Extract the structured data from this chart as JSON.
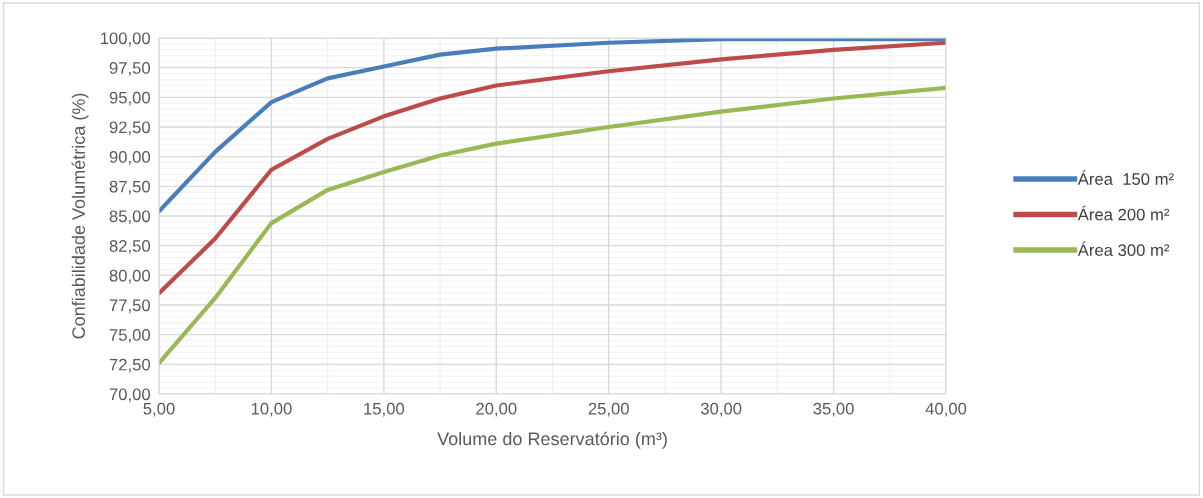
{
  "chart_data": {
    "type": "line",
    "xlabel": "Volume do Reservatório (m³)",
    "ylabel": "Confiabilidade Volumétrica (%)",
    "x": [
      5,
      7.5,
      10,
      12.5,
      15,
      17.5,
      20,
      25,
      30,
      35,
      40
    ],
    "series": [
      {
        "name": "Área  150 m²",
        "color": "#4a7ebb",
        "values": [
          85.4,
          90.4,
          94.6,
          96.6,
          97.6,
          98.6,
          99.1,
          99.6,
          99.9,
          99.9,
          99.9
        ]
      },
      {
        "name": "Área 200 m²",
        "color": "#be4b48",
        "values": [
          78.5,
          83.1,
          88.9,
          91.5,
          93.4,
          94.9,
          96.0,
          97.2,
          98.2,
          99.0,
          99.6
        ]
      },
      {
        "name": "Área 300 m²",
        "color": "#98b954",
        "values": [
          72.6,
          78.1,
          84.4,
          87.2,
          88.7,
          90.1,
          91.1,
          92.5,
          93.8,
          94.9,
          95.8
        ]
      }
    ],
    "xlim": [
      5,
      40
    ],
    "xticks": [
      {
        "value": 5,
        "label": "5,00"
      },
      {
        "value": 10,
        "label": "10,00"
      },
      {
        "value": 15,
        "label": "15,00"
      },
      {
        "value": 20,
        "label": "20,00"
      },
      {
        "value": 25,
        "label": "25,00"
      },
      {
        "value": 30,
        "label": "30,00"
      },
      {
        "value": 35,
        "label": "35,00"
      },
      {
        "value": 40,
        "label": "40,00"
      }
    ],
    "ylim": [
      70,
      100
    ],
    "yticks": [
      {
        "value": 70,
        "label": "70,00"
      },
      {
        "value": 72.5,
        "label": "72,50"
      },
      {
        "value": 75,
        "label": "75,00"
      },
      {
        "value": 77.5,
        "label": "77,50"
      },
      {
        "value": 80,
        "label": "80,00"
      },
      {
        "value": 82.5,
        "label": "82,50"
      },
      {
        "value": 85,
        "label": "85,00"
      },
      {
        "value": 87.5,
        "label": "87,50"
      },
      {
        "value": 90,
        "label": "90,00"
      },
      {
        "value": 92.5,
        "label": "92,50"
      },
      {
        "value": 95,
        "label": "95,00"
      },
      {
        "value": 97.5,
        "label": "97,50"
      },
      {
        "value": 100,
        "label": "100,00"
      }
    ],
    "grid": true,
    "legend": "right",
    "marker": "none",
    "line_style": "solid"
  }
}
